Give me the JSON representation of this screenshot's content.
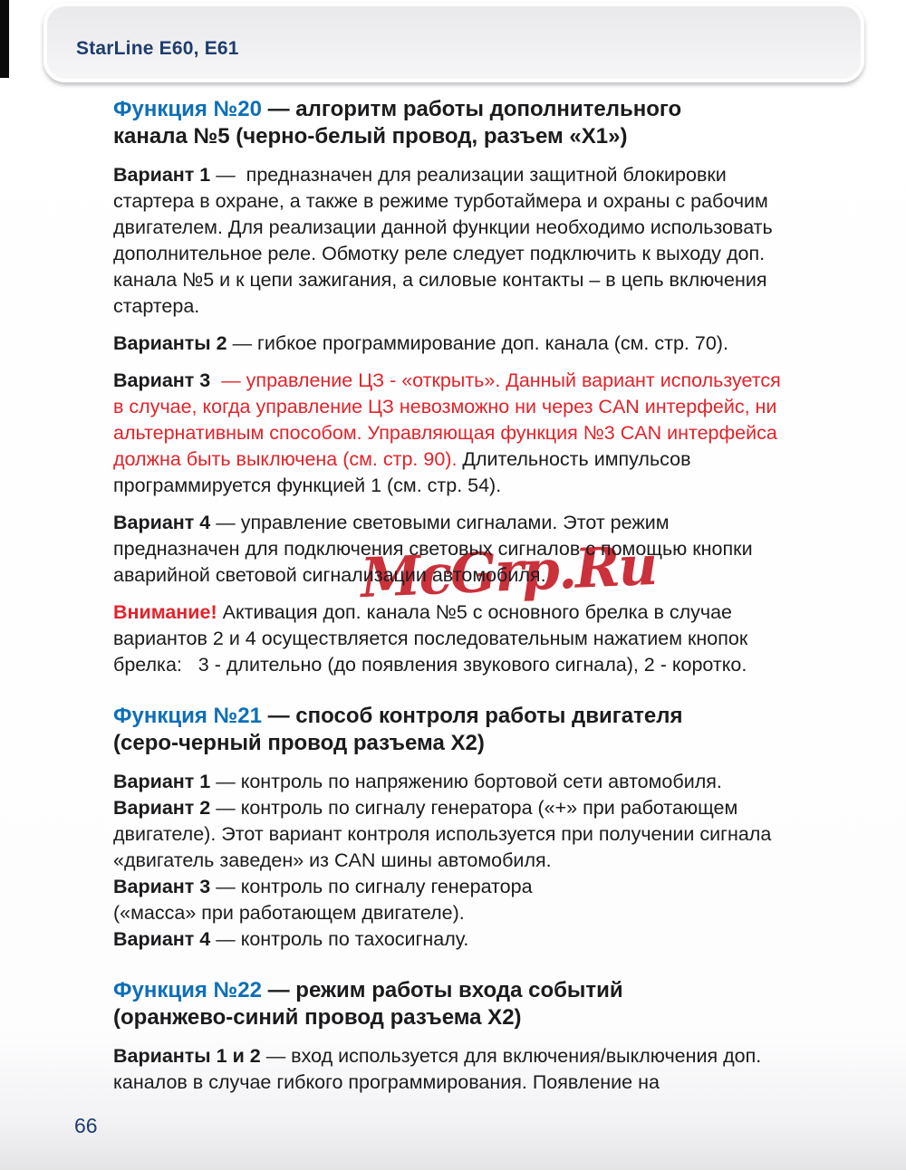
{
  "header": {
    "title": "StarLine E60, E61"
  },
  "watermark": "McGrp.Ru",
  "page_number": "66",
  "colors": {
    "heading_blue": "#0e6fb8",
    "alert_red": "#e2232a",
    "watermark_red": "#c6202a",
    "header_navy": "#1e3d6e",
    "body_text": "#1b1b1d"
  },
  "sections": [
    {
      "heading": {
        "number": "Функция №20",
        "title": " — алгоритм работы дополнительного\nканала №5 (черно-белый провод, разъем «Х1»)"
      },
      "paragraphs": [
        {
          "label": "Вариант 1",
          "text": " —  предназначен для реализации защитной блокировки стартера в охране, а также в режиме турботаймера и охраны с рабочим двигателем. Для реализации данной функции необходимо использовать дополнительное реле. Обмотку реле следует подключить к выходу доп. канала №5 и к цепи зажигания, а силовые контакты – в цепь включения стартера."
        },
        {
          "label": "Варианты 2",
          "text": " — гибкое программирование доп. канала (см. стр. 70)."
        },
        {
          "label": "Вариант 3",
          "red_text": "  — управление ЦЗ - «открыть». Данный вариант используется в случае, когда управление ЦЗ невозможно ни через CAN интерфейс, ни альтернативным способом. Управляющая функция №3 CAN интерфейса должна быть выключена (см. стр. 90).",
          "text": " Длительность импульсов программируется функцией 1 (см. стр. 54)."
        },
        {
          "label": "Вариант 4",
          "text": " — управление световыми сигналами. Этот режим предназначен для подключения световых сигналов с помощью кнопки аварийной световой сигнализации автомобиля."
        },
        {
          "red_label": "Внимание!",
          "text": " Активация доп. канала №5 с основного брелка в случае вариантов 2 и 4 осуществляется последовательным нажатием кнопок брелка:   3 - длительно (до появления звукового сигнала), 2 - коротко."
        }
      ]
    },
    {
      "heading": {
        "number": "Функция №21",
        "title": " — способ контроля работы двигателя\n(серо-черный провод разъема Х2)"
      },
      "paragraphs": [
        {
          "label": "Вариант 1",
          "text": " — контроль по напряжению бортовой сети автомобиля."
        },
        {
          "label": "Вариант 2",
          "text": " — контроль по сигналу генератора («+» при работающем двигателе). Этот вариант контроля используется при получении сигнала «двигатель заведен» из CAN шины автомобиля."
        },
        {
          "label": "Вариант 3",
          "text": " — контроль по сигналу генератора\n(«масса» при работающем двигателе)."
        },
        {
          "label": "Вариант 4",
          "text": " — контроль по тахосигналу."
        }
      ]
    },
    {
      "heading": {
        "number": "Функция №22",
        "title": " — режим работы входа событий\n(оранжево-синий провод разъема Х2)"
      },
      "paragraphs": [
        {
          "label": "Варианты 1 и 2",
          "text": " — вход используется для включения/выключения доп. каналов в случае гибкого программирования. Появление на"
        }
      ]
    }
  ]
}
